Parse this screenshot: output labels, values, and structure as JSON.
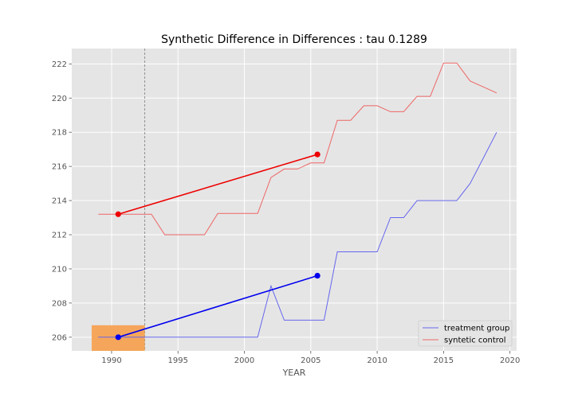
{
  "chart_data": {
    "type": "line",
    "title": "Synthetic Difference in Differences : tau 0.1289",
    "xlabel": "YEAR",
    "ylabel": "",
    "xlim": [
      1987,
      2020.5
    ],
    "ylim": [
      205.2,
      222.9
    ],
    "xticks": [
      1990,
      1995,
      2000,
      2005,
      2010,
      2015,
      2020
    ],
    "yticks": [
      206,
      208,
      210,
      212,
      214,
      216,
      218,
      220,
      222
    ],
    "grid": true,
    "legend_position": "bottom-right",
    "intervention_year": 92.5,
    "series": [
      {
        "name": "treatment group",
        "color": "#6666ee",
        "x": [
          1989,
          1990,
          1991,
          1992,
          1993,
          1994,
          1995,
          1996,
          1997,
          1998,
          1999,
          2000,
          2001,
          2002,
          2003,
          2004,
          2005,
          2006,
          2007,
          2008,
          2009,
          2010,
          2011,
          2012,
          2013,
          2014,
          2015,
          2016,
          2017,
          2018,
          2019
        ],
        "y": [
          206,
          206,
          206,
          206,
          206,
          206,
          206,
          206,
          206,
          206,
          206,
          206,
          206,
          209,
          207,
          207,
          207,
          207,
          211,
          211,
          211,
          211,
          213,
          213,
          214,
          214,
          214,
          214,
          215,
          216.5,
          218
        ]
      },
      {
        "name": "syntetic control",
        "color": "#ee6666",
        "x": [
          1989,
          1990,
          1991,
          1992,
          1993,
          1994,
          1995,
          1996,
          1997,
          1998,
          1999,
          2000,
          2001,
          2002,
          2003,
          2004,
          2005,
          2006,
          2007,
          2008,
          2009,
          2010,
          2011,
          2012,
          2013,
          2014,
          2015,
          2016,
          2017,
          2018,
          2019
        ],
        "y": [
          213.2,
          213.2,
          213.2,
          213.2,
          213.2,
          212.0,
          212.0,
          212.0,
          212.0,
          213.25,
          213.25,
          213.25,
          213.25,
          215.35,
          215.85,
          215.85,
          216.2,
          216.2,
          218.7,
          218.7,
          219.55,
          219.55,
          219.2,
          219.2,
          220.1,
          220.1,
          222.05,
          222.05,
          221.0,
          220.65,
          220.3
        ]
      }
    ],
    "effect_segments": [
      {
        "role": "treatment",
        "color": "#0000ee",
        "x": [
          1990.5,
          2005.5
        ],
        "y": [
          206.0,
          209.6
        ]
      },
      {
        "role": "control",
        "color": "#ee0000",
        "x": [
          1990.5,
          2005.5
        ],
        "y": [
          213.2,
          216.7
        ]
      }
    ],
    "pre_period_box": {
      "color": "#f5a65b",
      "x": [
        1988.5,
        1992.5
      ],
      "y": [
        205.2,
        206.7
      ]
    }
  }
}
